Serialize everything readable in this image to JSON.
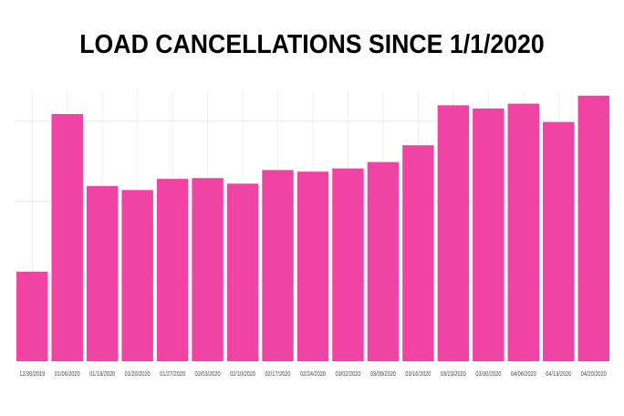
{
  "chart_data": {
    "type": "bar",
    "title": "LOAD CANCELLATIONS SINCE 1/1/2020",
    "xlabel": "",
    "ylabel": "",
    "ylim": [
      0,
      3.35
    ],
    "grid": true,
    "gridlines_y": [
      1,
      2,
      3
    ],
    "bar_color": "#f044a5",
    "categories": [
      "12/30/2019",
      "01/06/2020",
      "01/13/2020",
      "01/20/2020",
      "01/27/2020",
      "02/03/2020",
      "02/10/2020",
      "02/17/2020",
      "02/24/2020",
      "03/02/2020",
      "03/09/2020",
      "03/16/2020",
      "03/23/2020",
      "03/30/2020",
      "04/06/2020",
      "04/13/2020",
      "04/20/2020"
    ],
    "values": [
      1.12,
      3.09,
      2.19,
      2.14,
      2.28,
      2.29,
      2.22,
      2.39,
      2.37,
      2.41,
      2.49,
      2.7,
      3.2,
      3.16,
      3.22,
      2.99,
      3.32
    ]
  }
}
